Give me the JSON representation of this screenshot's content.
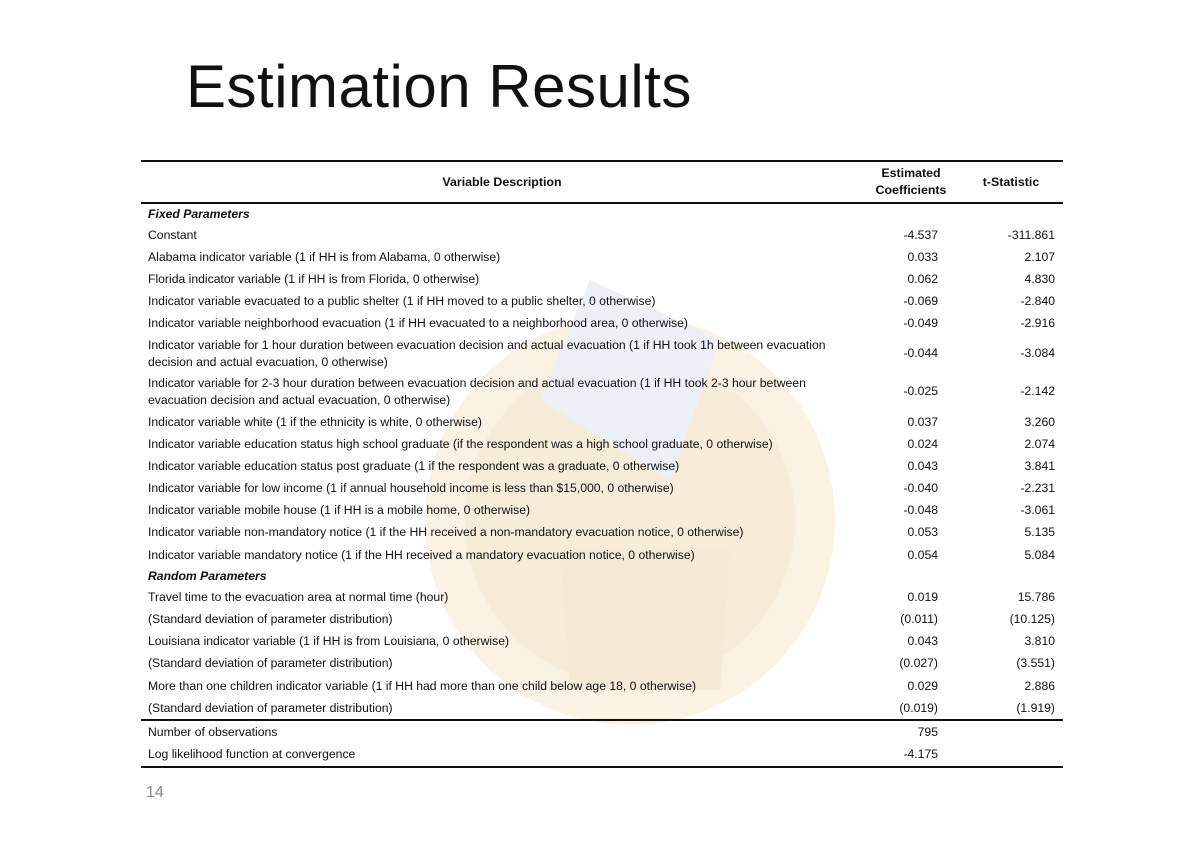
{
  "slide": {
    "title": "Estimation Results",
    "page_number": "14"
  },
  "table": {
    "headers": {
      "description": "Variable Description",
      "coefficient": "Estimated Coefficients",
      "tstat": "t-Statistic"
    },
    "sections": [
      {
        "label": "Fixed Parameters",
        "rows": [
          {
            "desc": "Constant",
            "coef": "-4.537",
            "t": "-311.861"
          },
          {
            "desc": "Alabama indicator variable (1 if HH is from Alabama, 0 otherwise)",
            "coef": "0.033",
            "t": "2.107"
          },
          {
            "desc": "Florida indicator variable (1 if HH is from Florida, 0 otherwise)",
            "coef": "0.062",
            "t": "4.830"
          },
          {
            "desc": "Indicator variable  evacuated to a public shelter (1 if HH moved to a public shelter, 0 otherwise)",
            "coef": "-0.069",
            "t": "-2.840"
          },
          {
            "desc": "Indicator variable neighborhood evacuation (1 if HH evacuated to a neighborhood area, 0 otherwise)",
            "coef": "-0.049",
            "t": "-2.916"
          },
          {
            "desc": "Indicator variable  for 1 hour duration between evacuation decision and actual evacuation (1 if HH took 1h between evacuation decision and actual evacuation, 0 otherwise)",
            "coef": "-0.044",
            "t": "-3.084"
          },
          {
            "desc": "Indicator variable for 2-3 hour duration between evacuation decision and actual evacuation (1 if HH took 2-3 hour between evacuation decision and actual evacuation, 0 otherwise)",
            "coef": "-0.025",
            "t": "-2.142"
          },
          {
            "desc": "Indicator variable white (1 if the ethnicity is white, 0 otherwise)",
            "coef": "0.037",
            "t": "3.260"
          },
          {
            "desc": "Indicator variable education status high school graduate (if the respondent was a high school graduate, 0 otherwise)",
            "coef": "0.024",
            "t": "2.074"
          },
          {
            "desc": "Indicator variable education status post graduate (1 if the respondent was a graduate, 0 otherwise)",
            "coef": "0.043",
            "t": "3.841"
          },
          {
            "desc": "Indicator variable for low income (1 if annual household income is less than $15,000, 0 otherwise)",
            "coef": "-0.040",
            "t": "-2.231"
          },
          {
            "desc": "Indicator variable  mobile house (1 if HH is a mobile home, 0 otherwise)",
            "coef": "-0.048",
            "t": "-3.061"
          },
          {
            "desc": "Indicator variable non-mandatory notice (1 if the HH received a non-mandatory evacuation notice, 0 otherwise)",
            "coef": "0.053",
            "t": "5.135"
          },
          {
            "desc": "Indicator variable mandatory notice (1 if the HH received a mandatory evacuation notice, 0 otherwise)",
            "coef": "0.054",
            "t": "5.084"
          }
        ]
      },
      {
        "label": "Random Parameters",
        "rows": [
          {
            "desc": "Travel time to the evacuation area at normal time (hour)",
            "coef": "0.019",
            "t": "15.786"
          },
          {
            "desc": "(Standard deviation of parameter distribution)",
            "coef": "(0.011)",
            "t": "(10.125)"
          },
          {
            "desc": "Louisiana indicator variable (1 if HH is from Louisiana, 0 otherwise)",
            "coef": "0.043",
            "t": "3.810"
          },
          {
            "desc": "(Standard deviation of parameter distribution)",
            "coef": "(0.027)",
            "t": "(3.551)"
          },
          {
            "desc": "More than one children indicator variable (1 if HH had  more than one child below age 18, 0 otherwise)",
            "coef": "0.029",
            "t": "2.886"
          },
          {
            "desc": "(Standard deviation of parameter distribution)",
            "coef": "(0.019)",
            "t": "(1.919)"
          }
        ]
      }
    ],
    "summary": [
      {
        "desc": "Number of observations",
        "coef": "795",
        "t": ""
      },
      {
        "desc": "Log likelihood function at convergence",
        "coef": "-4.175",
        "t": ""
      }
    ]
  }
}
